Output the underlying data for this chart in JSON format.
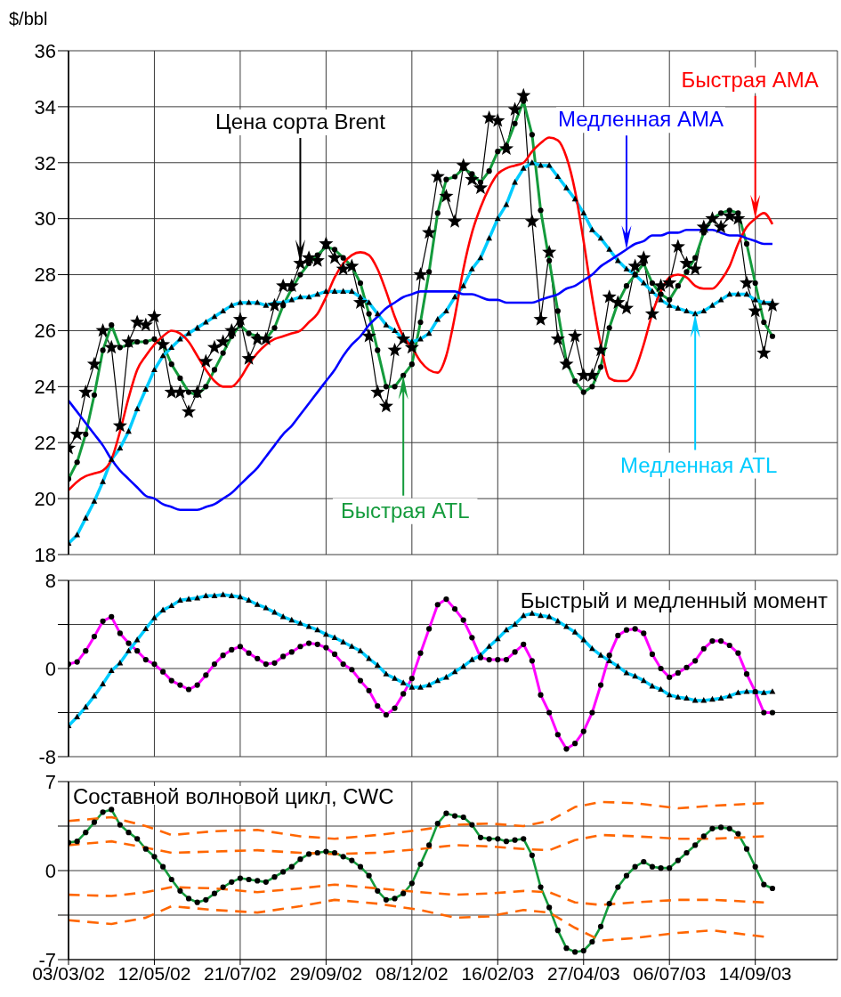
{
  "chart_data": [
    {
      "type": "line",
      "ylabel": "$/bbl",
      "x": [
        "2002-03-03",
        "2002-03-10",
        "2002-03-17",
        "2002-03-24",
        "2002-03-31",
        "2002-04-07",
        "2002-04-14",
        "2002-04-21",
        "2002-04-28",
        "2002-05-05",
        "2002-05-12",
        "2002-05-19",
        "2002-05-26",
        "2002-06-02",
        "2002-06-09",
        "2002-06-16",
        "2002-06-23",
        "2002-06-30",
        "2002-07-07",
        "2002-07-14",
        "2002-07-21",
        "2002-07-28",
        "2002-08-04",
        "2002-08-11",
        "2002-08-18",
        "2002-08-25",
        "2002-09-01",
        "2002-09-08",
        "2002-09-15",
        "2002-09-22",
        "2002-09-29",
        "2002-10-06",
        "2002-10-13",
        "2002-10-20",
        "2002-10-27",
        "2002-11-03",
        "2002-11-10",
        "2002-11-17",
        "2002-11-24",
        "2002-12-01",
        "2002-12-08",
        "2002-12-15",
        "2002-12-22",
        "2002-12-29",
        "2003-01-05",
        "2003-01-12",
        "2003-01-19",
        "2003-01-26",
        "2003-02-02",
        "2003-02-09",
        "2003-02-16",
        "2003-02-23",
        "2003-03-02",
        "2003-03-09",
        "2003-03-16",
        "2003-03-23",
        "2003-03-30",
        "2003-04-06",
        "2003-04-13",
        "2003-04-20",
        "2003-04-27",
        "2003-05-04",
        "2003-05-11",
        "2003-05-18",
        "2003-05-25",
        "2003-06-01",
        "2003-06-08",
        "2003-06-15",
        "2003-06-22",
        "2003-06-29",
        "2003-07-06",
        "2003-07-13",
        "2003-07-20",
        "2003-07-27",
        "2003-08-03",
        "2003-08-10",
        "2003-08-17",
        "2003-08-24",
        "2003-08-31",
        "2003-09-07",
        "2003-09-14",
        "2003-09-21",
        "2003-09-28"
      ],
      "xlim": [
        "2002-03-03",
        "2003-11-20"
      ],
      "xticks": [
        {
          "value": "2002-03-03",
          "label": null
        },
        {
          "value": "2002-05-12",
          "label": null
        },
        {
          "value": "2002-07-21",
          "label": null
        },
        {
          "value": "2002-09-29",
          "label": null
        },
        {
          "value": "2002-12-08",
          "label": null
        },
        {
          "value": "2003-02-16",
          "label": null
        },
        {
          "value": "2003-04-27",
          "label": null
        },
        {
          "value": "2003-07-06",
          "label": null
        },
        {
          "value": "2003-09-14",
          "label": null
        }
      ],
      "ylim": [
        18,
        36
      ],
      "yticks": [
        18,
        20,
        22,
        24,
        26,
        28,
        30,
        32,
        34,
        36
      ],
      "grid": true,
      "tick_labels": "y",
      "series": [
        {
          "name": "Цена сорта Brent",
          "color": "#000000",
          "marker": "star",
          "values": [
            21.8,
            22.3,
            23.8,
            24.8,
            26.0,
            25.4,
            22.6,
            25.6,
            26.3,
            26.2,
            26.5,
            25.5,
            23.8,
            23.8,
            23.1,
            23.8,
            24.9,
            25.4,
            25.6,
            26.0,
            26.4,
            25.0,
            25.7,
            25.7,
            26.9,
            27.6,
            27.6,
            28.4,
            28.6,
            28.5,
            29.1,
            28.6,
            28.2,
            28.3,
            27.0,
            25.8,
            23.8,
            23.3,
            25.3,
            25.7,
            25.4,
            28.0,
            29.5,
            31.5,
            30.8,
            29.9,
            31.9,
            31.4,
            31.1,
            33.6,
            33.5,
            32.5,
            33.9,
            34.4,
            29.9,
            26.4,
            28.8,
            25.7,
            24.8,
            25.8,
            24.4,
            24.4,
            25.3,
            27.2,
            27.0,
            26.8,
            28.3,
            28.6,
            26.6,
            27.6,
            27.7,
            29.0,
            28.4,
            28.2,
            29.7,
            30.0,
            29.7,
            30.1,
            30.0,
            27.7,
            26.7,
            25.2,
            26.9
          ]
        },
        {
          "name": "Быстрая ATL",
          "color": "#149b3c",
          "marker": "circle",
          "values": [
            20.7,
            21.3,
            22.3,
            23.7,
            25.3,
            26.2,
            25.4,
            25.5,
            25.6,
            25.6,
            25.7,
            25.5,
            24.8,
            24.3,
            23.8,
            23.7,
            24.0,
            24.6,
            25.2,
            25.8,
            26.2,
            25.9,
            25.8,
            25.7,
            26.1,
            26.9,
            27.5,
            28.0,
            28.4,
            28.7,
            29.0,
            28.9,
            28.6,
            28.3,
            27.7,
            26.6,
            25.3,
            24.0,
            24.0,
            24.4,
            24.8,
            26.3,
            28.1,
            30.2,
            31.4,
            31.5,
            31.8,
            31.6,
            31.3,
            31.7,
            32.4,
            32.6,
            33.4,
            34.2,
            33.0,
            30.3,
            28.5,
            26.7,
            24.9,
            24.2,
            23.8,
            24.0,
            24.7,
            26.1,
            27.0,
            27.6,
            28.0,
            28.4,
            27.7,
            27.3,
            27.1,
            27.6,
            28.1,
            28.6,
            29.5,
            30.0,
            30.2,
            30.3,
            30.2,
            29.1,
            27.7,
            26.3,
            25.8
          ]
        },
        {
          "name": "Медленная ATL",
          "color": "#00ccff",
          "marker": "triangle",
          "values": [
            18.4,
            18.7,
            19.3,
            19.9,
            20.6,
            21.4,
            21.8,
            22.4,
            23.2,
            23.9,
            24.6,
            25.1,
            25.4,
            25.7,
            25.9,
            26.1,
            26.3,
            26.5,
            26.7,
            26.9,
            27.0,
            27.0,
            27.0,
            26.9,
            27.0,
            27.0,
            27.1,
            27.2,
            27.2,
            27.3,
            27.4,
            27.4,
            27.4,
            27.4,
            27.2,
            27.0,
            26.6,
            26.2,
            26.0,
            25.7,
            25.6,
            25.7,
            25.9,
            26.4,
            26.7,
            27.2,
            27.6,
            28.2,
            28.6,
            29.3,
            30.0,
            30.5,
            31.3,
            31.8,
            32.0,
            31.9,
            31.9,
            31.5,
            31.1,
            30.7,
            30.2,
            29.6,
            29.3,
            28.9,
            28.5,
            28.2,
            28.0,
            27.7,
            27.4,
            27.1,
            26.9,
            26.8,
            26.7,
            26.6,
            26.7,
            26.9,
            27.1,
            27.3,
            27.3,
            27.3,
            27.1,
            27.0,
            27.0
          ]
        },
        {
          "name": "Быстрая AMA",
          "color": "#ff0000",
          "values": [
            20.3,
            20.6,
            20.8,
            20.9,
            21.0,
            21.4,
            22.4,
            23.6,
            24.6,
            25.1,
            25.5,
            25.8,
            26.0,
            25.9,
            25.6,
            25.1,
            24.6,
            24.2,
            24.0,
            24.0,
            24.3,
            24.8,
            25.2,
            25.5,
            25.7,
            25.8,
            25.9,
            26.0,
            26.3,
            26.6,
            27.2,
            27.9,
            28.4,
            28.7,
            28.8,
            28.7,
            28.2,
            27.4,
            26.5,
            25.8,
            25.4,
            24.9,
            24.6,
            24.5,
            25.1,
            26.5,
            28.2,
            29.5,
            30.4,
            31.1,
            31.6,
            31.8,
            31.9,
            32.0,
            32.4,
            32.7,
            32.9,
            32.8,
            32.2,
            31.0,
            29.2,
            27.2,
            25.5,
            24.3,
            24.2,
            24.2,
            24.6,
            25.5,
            26.6,
            27.4,
            27.9,
            28.0,
            27.9,
            27.6,
            27.5,
            27.5,
            27.8,
            28.3,
            29.1,
            29.7,
            30.0,
            30.2,
            29.8
          ]
        },
        {
          "name": "Медленная AMA",
          "color": "#0000ff",
          "values": [
            23.5,
            23.1,
            22.7,
            22.3,
            21.9,
            21.4,
            21.0,
            20.7,
            20.4,
            20.1,
            20.0,
            19.8,
            19.7,
            19.6,
            19.6,
            19.6,
            19.7,
            19.8,
            20.0,
            20.2,
            20.5,
            20.8,
            21.1,
            21.5,
            21.9,
            22.3,
            22.6,
            23.0,
            23.4,
            23.8,
            24.2,
            24.6,
            25.1,
            25.5,
            25.8,
            26.2,
            26.5,
            26.8,
            27.0,
            27.2,
            27.3,
            27.4,
            27.4,
            27.4,
            27.4,
            27.4,
            27.3,
            27.3,
            27.2,
            27.1,
            27.1,
            27.0,
            27.0,
            27.0,
            27.0,
            27.1,
            27.2,
            27.3,
            27.5,
            27.6,
            27.8,
            28.0,
            28.3,
            28.5,
            28.7,
            28.9,
            29.1,
            29.2,
            29.4,
            29.4,
            29.5,
            29.5,
            29.6,
            29.6,
            29.6,
            29.6,
            29.5,
            29.4,
            29.4,
            29.3,
            29.2,
            29.1,
            29.1
          ]
        }
      ]
    },
    {
      "type": "line",
      "title": "Быстрый и медленный момент",
      "x": [
        "2002-03-03",
        "2002-03-10",
        "2002-03-17",
        "2002-03-24",
        "2002-03-31",
        "2002-04-07",
        "2002-04-14",
        "2002-04-21",
        "2002-04-28",
        "2002-05-05",
        "2002-05-12",
        "2002-05-19",
        "2002-05-26",
        "2002-06-02",
        "2002-06-09",
        "2002-06-16",
        "2002-06-23",
        "2002-06-30",
        "2002-07-07",
        "2002-07-14",
        "2002-07-21",
        "2002-07-28",
        "2002-08-04",
        "2002-08-11",
        "2002-08-18",
        "2002-08-25",
        "2002-09-01",
        "2002-09-08",
        "2002-09-15",
        "2002-09-22",
        "2002-09-29",
        "2002-10-06",
        "2002-10-13",
        "2002-10-20",
        "2002-10-27",
        "2002-11-03",
        "2002-11-10",
        "2002-11-17",
        "2002-11-24",
        "2002-12-01",
        "2002-12-08",
        "2002-12-15",
        "2002-12-22",
        "2002-12-29",
        "2003-01-05",
        "2003-01-12",
        "2003-01-19",
        "2003-01-26",
        "2003-02-02",
        "2003-02-09",
        "2003-02-16",
        "2003-02-23",
        "2003-03-02",
        "2003-03-09",
        "2003-03-16",
        "2003-03-23",
        "2003-03-30",
        "2003-04-06",
        "2003-04-13",
        "2003-04-20",
        "2003-04-27",
        "2003-05-04",
        "2003-05-11",
        "2003-05-18",
        "2003-05-25",
        "2003-06-01",
        "2003-06-08",
        "2003-06-15",
        "2003-06-22",
        "2003-06-29",
        "2003-07-06",
        "2003-07-13",
        "2003-07-20",
        "2003-07-27",
        "2003-08-03",
        "2003-08-10",
        "2003-08-17",
        "2003-08-24",
        "2003-08-31",
        "2003-09-07",
        "2003-09-14",
        "2003-09-21",
        "2003-09-28"
      ],
      "xlim": [
        "2002-03-03",
        "2003-11-20"
      ],
      "xticks": [
        {
          "value": "2002-03-03",
          "label": null
        },
        {
          "value": "2002-05-12",
          "label": null
        },
        {
          "value": "2002-07-21",
          "label": null
        },
        {
          "value": "2002-09-29",
          "label": null
        },
        {
          "value": "2002-12-08",
          "label": null
        },
        {
          "value": "2003-02-16",
          "label": null
        },
        {
          "value": "2003-04-27",
          "label": null
        },
        {
          "value": "2003-07-06",
          "label": null
        },
        {
          "value": "2003-09-14",
          "label": null
        }
      ],
      "ylim": [
        -8,
        8
      ],
      "yticks": [
        -8,
        {
          "value": -4,
          "label": null
        },
        0,
        {
          "value": 4,
          "label": null
        },
        8
      ],
      "grid": true,
      "tick_labels": "y",
      "series": [
        {
          "color": "#ff00ff",
          "marker": "circle",
          "values": [
            0.4,
            0.6,
            1.6,
            2.9,
            4.3,
            4.7,
            3.2,
            2.3,
            1.6,
            0.8,
            0.4,
            -0.3,
            -1.1,
            -1.5,
            -1.9,
            -1.5,
            -0.6,
            0.4,
            1.2,
            1.7,
            2.0,
            1.4,
            0.9,
            0.4,
            0.5,
            1.1,
            1.5,
            2.0,
            2.3,
            2.2,
            1.9,
            1.3,
            0.4,
            -0.1,
            -1.1,
            -2.0,
            -3.4,
            -4.2,
            -3.6,
            -2.3,
            -0.9,
            1.4,
            3.6,
            5.8,
            6.3,
            5.4,
            4.4,
            2.8,
            1.0,
            0.8,
            0.8,
            0.8,
            1.5,
            2.2,
            0.7,
            -2.4,
            -4.0,
            -6.0,
            -7.3,
            -6.8,
            -5.7,
            -4.0,
            -1.5,
            1.2,
            3.0,
            3.5,
            3.6,
            3.2,
            1.3,
            0.0,
            -0.8,
            -0.4,
            0.1,
            0.7,
            1.8,
            2.5,
            2.5,
            2.1,
            1.4,
            -0.5,
            -2.1,
            -4.0,
            -4.0
          ]
        },
        {
          "color": "#00ccff",
          "marker": "triangle",
          "values": [
            -5.2,
            -4.4,
            -3.5,
            -2.5,
            -1.4,
            -0.2,
            0.5,
            1.6,
            2.6,
            3.6,
            4.6,
            5.3,
            5.7,
            6.2,
            6.3,
            6.4,
            6.6,
            6.6,
            6.7,
            6.6,
            6.5,
            6.2,
            5.8,
            5.5,
            5.1,
            4.7,
            4.4,
            4.1,
            3.8,
            3.5,
            3.1,
            2.8,
            2.4,
            2.0,
            1.6,
            0.9,
            0.3,
            -0.5,
            -0.9,
            -1.3,
            -1.7,
            -1.7,
            -1.5,
            -1.1,
            -0.8,
            -0.3,
            0.2,
            0.8,
            1.2,
            2.0,
            2.7,
            3.5,
            4.0,
            4.8,
            5.0,
            4.8,
            4.7,
            4.3,
            3.8,
            3.3,
            2.6,
            1.8,
            1.2,
            0.7,
            0.2,
            -0.4,
            -0.7,
            -1.1,
            -1.6,
            -1.9,
            -2.4,
            -2.6,
            -2.7,
            -2.9,
            -2.9,
            -2.8,
            -2.7,
            -2.5,
            -2.2,
            -2.1,
            -2.1,
            -2.2,
            -2.1
          ]
        }
      ]
    },
    {
      "type": "line",
      "title": "Составной волновой цикл, CWC",
      "x": [
        "2002-03-03",
        "2002-03-10",
        "2002-03-17",
        "2002-03-24",
        "2002-03-31",
        "2002-04-07",
        "2002-04-14",
        "2002-04-21",
        "2002-04-28",
        "2002-05-05",
        "2002-05-12",
        "2002-05-19",
        "2002-05-26",
        "2002-06-02",
        "2002-06-09",
        "2002-06-16",
        "2002-06-23",
        "2002-06-30",
        "2002-07-07",
        "2002-07-14",
        "2002-07-21",
        "2002-07-28",
        "2002-08-04",
        "2002-08-11",
        "2002-08-18",
        "2002-08-25",
        "2002-09-01",
        "2002-09-08",
        "2002-09-15",
        "2002-09-22",
        "2002-09-29",
        "2002-10-06",
        "2002-10-13",
        "2002-10-20",
        "2002-10-27",
        "2002-11-03",
        "2002-11-10",
        "2002-11-17",
        "2002-11-24",
        "2002-12-01",
        "2002-12-08",
        "2002-12-15",
        "2002-12-22",
        "2002-12-29",
        "2003-01-05",
        "2003-01-12",
        "2003-01-19",
        "2003-01-26",
        "2003-02-02",
        "2003-02-09",
        "2003-02-16",
        "2003-02-23",
        "2003-03-02",
        "2003-03-09",
        "2003-03-16",
        "2003-03-23",
        "2003-03-30",
        "2003-04-06",
        "2003-04-13",
        "2003-04-20",
        "2003-04-27",
        "2003-05-04",
        "2003-05-11",
        "2003-05-18",
        "2003-05-25",
        "2003-06-01",
        "2003-06-08",
        "2003-06-15",
        "2003-06-22",
        "2003-06-29",
        "2003-07-06",
        "2003-07-13",
        "2003-07-20",
        "2003-07-27",
        "2003-08-03",
        "2003-08-10",
        "2003-08-17",
        "2003-08-24",
        "2003-08-31",
        "2003-09-07",
        "2003-09-14",
        "2003-09-21",
        "2003-09-28"
      ],
      "xlim": [
        "2002-03-03",
        "2003-11-20"
      ],
      "xticks": [
        {
          "value": "2002-03-03",
          "label": "03/03/02"
        },
        {
          "value": "2002-05-12",
          "label": "12/05/02"
        },
        {
          "value": "2002-07-21",
          "label": "21/07/02"
        },
        {
          "value": "2002-09-29",
          "label": "29/09/02"
        },
        {
          "value": "2002-12-08",
          "label": "08/12/02"
        },
        {
          "value": "2003-02-16",
          "label": "16/02/03"
        },
        {
          "value": "2003-04-27",
          "label": "27/04/03"
        },
        {
          "value": "2003-07-06",
          "label": "06/07/03"
        },
        {
          "value": "2003-09-14",
          "label": "14/09/03"
        }
      ],
      "ylim": [
        -7,
        7
      ],
      "yticks": [
        -7,
        {
          "value": -3.5,
          "label": null
        },
        0,
        {
          "value": 3.5,
          "label": null
        },
        7
      ],
      "grid": true,
      "series": [
        {
          "color": "#149b3c",
          "marker": "circle",
          "values": [
            2.2,
            2.3,
            3.0,
            3.8,
            4.6,
            4.8,
            3.6,
            3.0,
            2.5,
            1.7,
            1.1,
            0.3,
            -0.7,
            -1.6,
            -2.2,
            -2.5,
            -2.3,
            -1.8,
            -1.3,
            -0.9,
            -0.6,
            -0.7,
            -0.8,
            -0.9,
            -0.5,
            -0.1,
            0.3,
            0.9,
            1.3,
            1.4,
            1.5,
            1.4,
            1.1,
            0.8,
            0.3,
            -0.4,
            -1.6,
            -2.3,
            -2.2,
            -1.8,
            -1.0,
            0.5,
            2.0,
            3.7,
            4.5,
            4.3,
            4.2,
            3.6,
            2.6,
            2.5,
            2.5,
            2.3,
            2.4,
            2.5,
            1.2,
            -1.3,
            -2.9,
            -4.7,
            -6.1,
            -6.4,
            -6.3,
            -5.6,
            -4.4,
            -2.6,
            -1.3,
            -0.4,
            0.3,
            0.7,
            0.3,
            0.2,
            0.2,
            0.8,
            1.4,
            2.0,
            2.7,
            3.3,
            3.4,
            3.3,
            2.9,
            1.7,
            0.3,
            -1.1,
            -1.4
          ]
        },
        {
          "color": "#ff6600",
          "line_style": "dashed",
          "x": [
            "2002-03-03",
            "2002-04-07",
            "2002-05-05",
            "2002-05-26",
            "2002-06-30",
            "2002-08-04",
            "2002-09-08",
            "2002-10-06",
            "2002-11-10",
            "2002-12-15",
            "2003-01-12",
            "2003-02-09",
            "2003-03-09",
            "2003-03-30",
            "2003-04-20",
            "2003-05-11",
            "2003-06-08",
            "2003-07-13",
            "2003-08-10",
            "2003-09-21"
          ],
          "values": [
            3.9,
            4.2,
            3.5,
            2.8,
            3.1,
            3.2,
            2.7,
            2.5,
            2.8,
            3.2,
            3.6,
            3.7,
            3.5,
            3.9,
            5.0,
            5.4,
            5.3,
            4.9,
            5.1,
            5.3
          ]
        },
        {
          "color": "#ff6600",
          "line_style": "dashed",
          "x": [
            "2002-03-03",
            "2002-04-07",
            "2002-05-05",
            "2002-05-26",
            "2002-06-30",
            "2002-08-04",
            "2002-09-08",
            "2002-10-06",
            "2002-11-10",
            "2002-12-15",
            "2003-01-12",
            "2003-02-09",
            "2003-03-09",
            "2003-03-30",
            "2003-04-20",
            "2003-05-11",
            "2003-06-08",
            "2003-07-13",
            "2003-08-10",
            "2003-09-21"
          ],
          "values": [
            2.0,
            2.3,
            1.8,
            1.4,
            1.5,
            1.6,
            1.4,
            1.3,
            1.4,
            1.7,
            2.0,
            1.9,
            1.7,
            1.6,
            2.4,
            2.8,
            2.7,
            2.5,
            2.5,
            2.7
          ]
        },
        {
          "color": "#ff6600",
          "line_style": "dashed",
          "x": [
            "2002-03-03",
            "2002-04-07",
            "2002-05-05",
            "2002-05-26",
            "2002-06-30",
            "2002-08-04",
            "2002-09-08",
            "2002-10-06",
            "2002-11-10",
            "2002-12-15",
            "2003-01-12",
            "2003-02-09",
            "2003-03-09",
            "2003-03-30",
            "2003-04-20",
            "2003-05-11",
            "2003-06-08",
            "2003-07-13",
            "2003-08-10",
            "2003-09-21"
          ],
          "values": [
            -1.9,
            -2.0,
            -1.7,
            -1.3,
            -1.4,
            -1.7,
            -1.4,
            -1.1,
            -1.4,
            -1.7,
            -1.9,
            -1.8,
            -1.6,
            -1.7,
            -2.5,
            -2.7,
            -2.5,
            -2.3,
            -2.3,
            -2.5
          ]
        },
        {
          "color": "#ff6600",
          "line_style": "dashed",
          "x": [
            "2002-03-03",
            "2002-04-07",
            "2002-05-05",
            "2002-05-26",
            "2002-06-30",
            "2002-08-04",
            "2002-09-08",
            "2002-10-06",
            "2002-11-10",
            "2002-12-15",
            "2003-01-12",
            "2003-02-09",
            "2003-03-09",
            "2003-03-30",
            "2003-04-20",
            "2003-05-11",
            "2003-06-08",
            "2003-07-13",
            "2003-08-10",
            "2003-09-21"
          ],
          "values": [
            -3.9,
            -4.2,
            -3.7,
            -2.8,
            -3.1,
            -3.3,
            -2.8,
            -2.3,
            -2.6,
            -3.1,
            -3.7,
            -3.6,
            -3.1,
            -3.3,
            -4.5,
            -5.5,
            -5.3,
            -4.9,
            -4.7,
            -5.2
          ]
        }
      ]
    }
  ]
}
